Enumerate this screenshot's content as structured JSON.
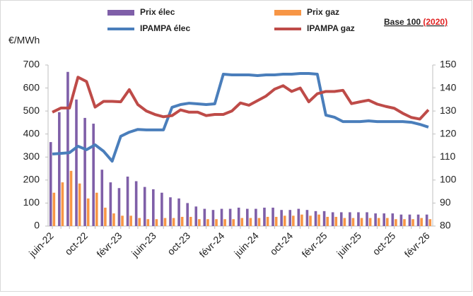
{
  "chart_data": {
    "type": "bar",
    "y_label": "€/MWh",
    "annotation": {
      "text": "Base 100",
      "year": "(2020)"
    },
    "categories": [
      "juin-22",
      null,
      null,
      null,
      "oct-22",
      null,
      null,
      null,
      "févr-23",
      null,
      null,
      null,
      "juin-23",
      null,
      null,
      null,
      "oct-23",
      null,
      null,
      null,
      "févr-24",
      null,
      null,
      null,
      "juin-24",
      null,
      null,
      null,
      "oct-24",
      null,
      null,
      null,
      "févr-25",
      null,
      null,
      null,
      "juin-25",
      null,
      null,
      null,
      "oct-25",
      null,
      null,
      null,
      "févr-26"
    ],
    "series": [
      {
        "name": "Prix élec",
        "type": "bar",
        "color": "#7f5fa8",
        "values": [
          365,
          495,
          670,
          550,
          470,
          445,
          245,
          190,
          165,
          215,
          195,
          170,
          160,
          145,
          125,
          120,
          100,
          85,
          75,
          70,
          75,
          75,
          80,
          75,
          75,
          80,
          80,
          70,
          70,
          75,
          70,
          65,
          65,
          60,
          60,
          60,
          60,
          60,
          55,
          55,
          55,
          50,
          50,
          50,
          50
        ]
      },
      {
        "name": "Prix gaz",
        "type": "bar",
        "color": "#f79646",
        "values": [
          145,
          190,
          240,
          185,
          120,
          145,
          80,
          55,
          45,
          45,
          35,
          30,
          30,
          35,
          35,
          40,
          40,
          30,
          30,
          30,
          30,
          30,
          35,
          35,
          35,
          40,
          40,
          45,
          45,
          50,
          45,
          50,
          40,
          40,
          35,
          35,
          35,
          35,
          35,
          35,
          30,
          30,
          30,
          35,
          30
        ]
      },
      {
        "name": "IPAMPA élec",
        "type": "line",
        "axis": "y2",
        "color": "#4a7ebb",
        "values": [
          111.3,
          111.6,
          111.9,
          114.7,
          113.2,
          115.3,
          112.5,
          108.2,
          119,
          120.8,
          122,
          121.8,
          121.8,
          121.8,
          131.6,
          132.8,
          133.4,
          133.1,
          132.8,
          133.1,
          146,
          145.7,
          145.7,
          145.7,
          145.4,
          145.7,
          145.7,
          146,
          146,
          146.3,
          146.3,
          146,
          128.2,
          127.3,
          125.4,
          125.4,
          125.4,
          125.7,
          125.4,
          125.4,
          125.4,
          125.4,
          125.1,
          124.2,
          123
        ]
      },
      {
        "name": "IPAMPA gaz",
        "type": "line",
        "axis": "y2",
        "color": "#be4b48",
        "values": [
          129.5,
          131.3,
          131.3,
          144.7,
          142.8,
          131.7,
          134.2,
          134.2,
          134,
          139.3,
          132.8,
          130,
          128.5,
          127.5,
          128,
          130.5,
          129.5,
          129.5,
          128,
          128.5,
          128.5,
          130,
          133.5,
          132.5,
          134.5,
          136.5,
          139.5,
          141,
          138.5,
          140,
          134,
          137.5,
          138.5,
          138.5,
          139,
          133.2,
          134,
          134.7,
          133,
          132,
          131.2,
          129,
          127.2,
          126.5,
          130.5
        ]
      }
    ],
    "ylim": [
      0,
      700
    ],
    "yticks": [
      0,
      100,
      200,
      300,
      400,
      500,
      600,
      700
    ],
    "y2lim": [
      80,
      150
    ],
    "y2ticks": [
      80,
      90,
      100,
      110,
      120,
      130,
      140,
      150
    ],
    "grid": false
  }
}
